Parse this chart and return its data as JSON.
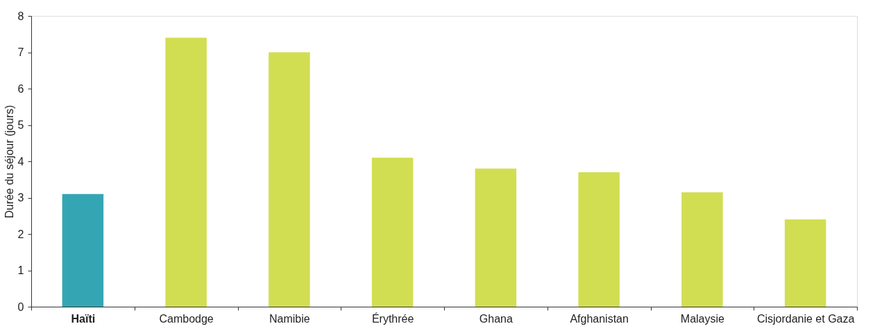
{
  "chart_data": {
    "type": "bar",
    "ylabel": "Durée du séjour (jours)",
    "categories": [
      "Haïti",
      "Cambodge",
      "Namibie",
      "Érythrée",
      "Ghana",
      "Afghanistan",
      "Malaysie",
      "Cisjordanie et Gaza"
    ],
    "values": [
      3.1,
      7.4,
      7.0,
      4.1,
      3.8,
      3.7,
      3.15,
      2.4
    ],
    "colors": [
      "#34a6b3",
      "#d1de52",
      "#d1de52",
      "#d1de52",
      "#d1de52",
      "#d1de52",
      "#d1de52",
      "#d1de52"
    ],
    "ylim": [
      0,
      8
    ],
    "yticks": [
      0,
      1,
      2,
      3,
      4,
      5,
      6,
      7,
      8
    ],
    "grid": false
  }
}
